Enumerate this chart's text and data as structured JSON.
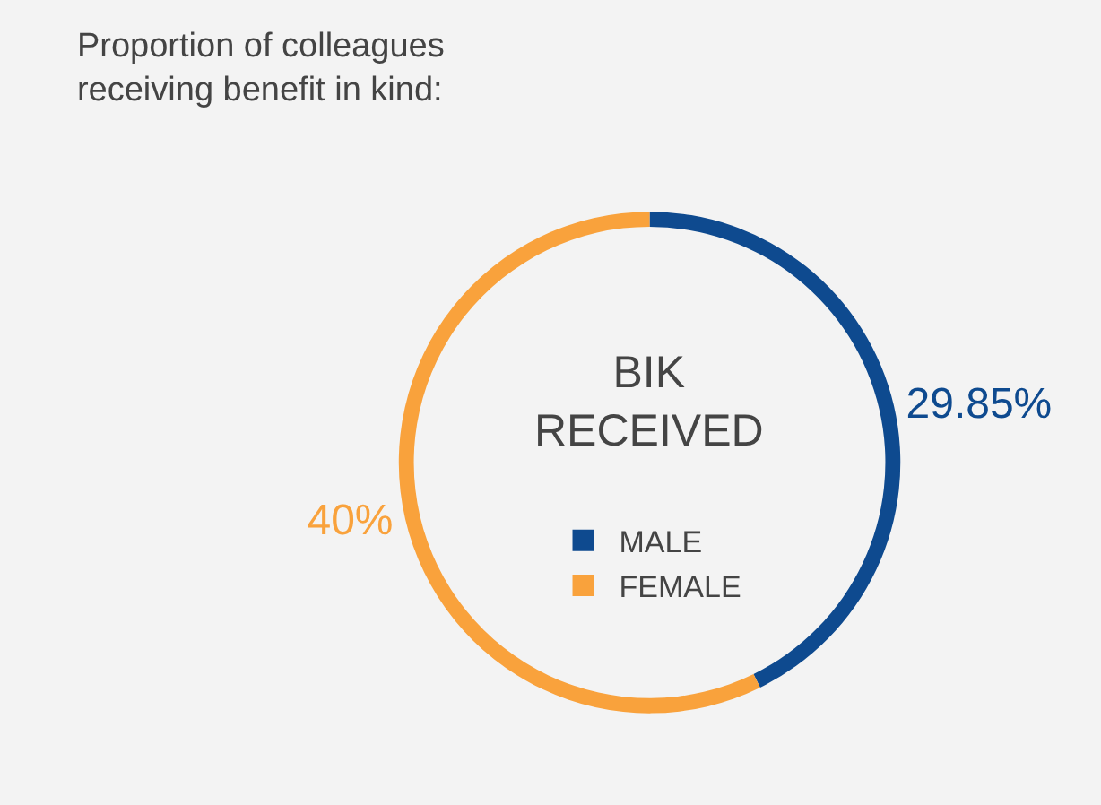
{
  "chart_data": {
    "type": "donut",
    "title": "Proportion of colleagues receiving benefit in kind:",
    "categories": [
      "MALE",
      "FEMALE"
    ],
    "values": [
      29.85,
      40
    ],
    "colors": [
      "#0e4a8f",
      "#f9a23c"
    ],
    "value_labels": [
      "29.85%",
      "40%"
    ],
    "annotations": [
      "BIK RECEIVED"
    ],
    "legend": "center"
  }
}
